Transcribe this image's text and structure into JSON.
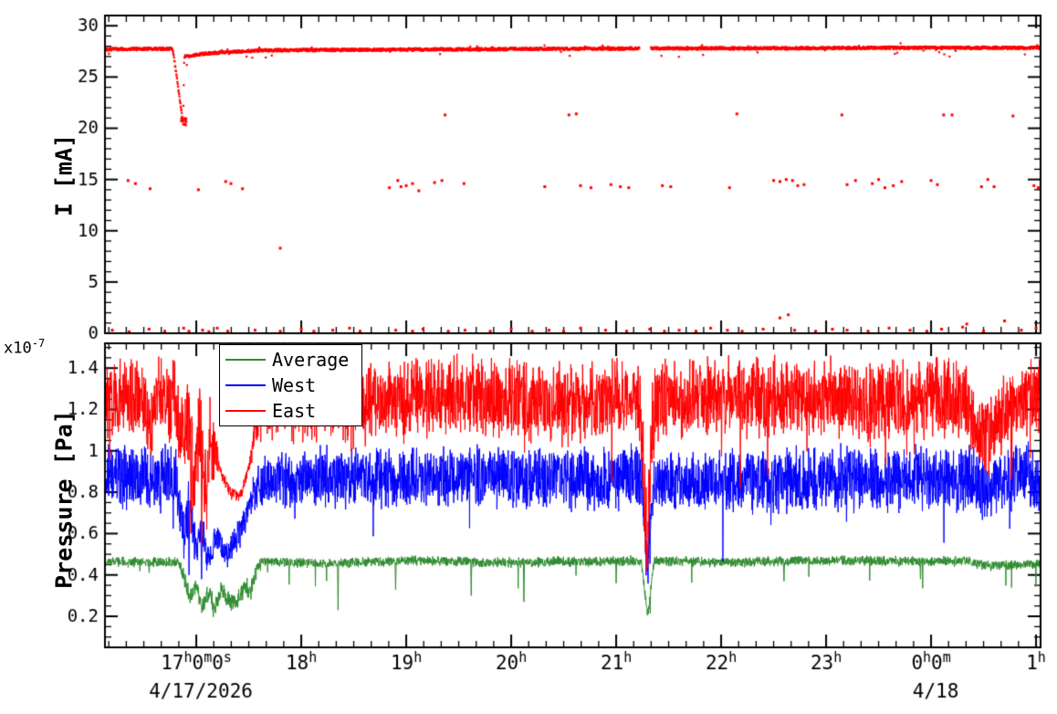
{
  "chart_data": [
    {
      "type": "scatter",
      "title": "",
      "xlabel": "",
      "ylabel": "I [mA]",
      "xlim": [
        16.13,
        25.043
      ],
      "ylim": [
        0,
        31
      ],
      "yticks": [
        0,
        5,
        10,
        15,
        20,
        25,
        30
      ],
      "ytick_labels": [
        "0",
        "5",
        "10",
        "15",
        "20",
        "25",
        "30"
      ],
      "y_minor_step": 1,
      "color": "#ff0000",
      "noise_mA": 0.13,
      "baseline_points": [
        [
          16.13,
          27.7
        ],
        [
          16.5,
          27.75
        ],
        [
          16.76,
          27.75
        ],
        [
          16.78,
          27.5
        ],
        [
          16.875,
          20.4
        ],
        [
          16.885,
          27.0
        ],
        [
          17.1,
          27.3
        ],
        [
          17.6,
          27.6
        ],
        [
          18.5,
          27.65
        ],
        [
          19.5,
          27.7
        ],
        [
          20.5,
          27.75
        ],
        [
          21.5,
          27.8
        ],
        [
          22.5,
          27.8
        ],
        [
          23.5,
          27.85
        ],
        [
          25.043,
          27.85
        ]
      ],
      "gaps": [
        [
          21.22,
          21.33
        ]
      ],
      "dip_cluster": {
        "x0": 16.855,
        "x1": 16.905,
        "y0": 20.3,
        "y1": 21.2,
        "count": 16
      },
      "outliers_15": [
        [
          16.35,
          14.9
        ],
        [
          16.42,
          14.6
        ],
        [
          16.56,
          14.1
        ],
        [
          17.02,
          14.0
        ],
        [
          17.28,
          14.8
        ],
        [
          17.33,
          14.6
        ],
        [
          17.44,
          14.1
        ],
        [
          18.84,
          14.2
        ],
        [
          18.92,
          14.9
        ],
        [
          18.95,
          14.3
        ],
        [
          19.0,
          14.4
        ],
        [
          19.06,
          14.6
        ],
        [
          19.12,
          13.9
        ],
        [
          19.27,
          14.7
        ],
        [
          19.34,
          14.9
        ],
        [
          19.55,
          14.6
        ],
        [
          20.32,
          14.3
        ],
        [
          20.66,
          14.4
        ],
        [
          20.76,
          14.2
        ],
        [
          20.95,
          14.5
        ],
        [
          21.04,
          14.3
        ],
        [
          21.12,
          14.2
        ],
        [
          21.44,
          14.4
        ],
        [
          21.52,
          14.3
        ],
        [
          22.08,
          14.2
        ],
        [
          22.5,
          14.9
        ],
        [
          22.56,
          14.8
        ],
        [
          22.62,
          15.0
        ],
        [
          22.68,
          14.9
        ],
        [
          22.73,
          14.4
        ],
        [
          22.79,
          14.5
        ],
        [
          23.2,
          14.5
        ],
        [
          23.28,
          14.9
        ],
        [
          23.44,
          14.6
        ],
        [
          23.5,
          15.0
        ],
        [
          23.56,
          14.2
        ],
        [
          23.64,
          14.4
        ],
        [
          23.72,
          14.8
        ],
        [
          24.0,
          14.9
        ],
        [
          24.06,
          14.5
        ],
        [
          24.48,
          14.3
        ],
        [
          24.54,
          15.0
        ],
        [
          24.6,
          14.3
        ],
        [
          24.98,
          14.4
        ],
        [
          25.02,
          14.2
        ]
      ],
      "outliers_21": [
        [
          19.37,
          21.3
        ],
        [
          20.55,
          21.3
        ],
        [
          20.62,
          21.4
        ],
        [
          22.15,
          21.4
        ],
        [
          23.15,
          21.3
        ],
        [
          24.12,
          21.3
        ],
        [
          24.2,
          21.3
        ],
        [
          24.78,
          21.2
        ]
      ],
      "outliers_mid": [
        [
          17.8,
          8.3
        ]
      ],
      "outliers_low": [
        [
          16.2,
          0.3
        ],
        [
          16.36,
          0.15
        ],
        [
          16.55,
          0.4
        ],
        [
          16.7,
          0.2
        ],
        [
          16.88,
          0.5
        ],
        [
          16.93,
          0.2
        ],
        [
          17.06,
          0.3
        ],
        [
          17.12,
          0.15
        ],
        [
          17.2,
          0.5
        ],
        [
          17.3,
          0.2
        ],
        [
          17.56,
          0.3
        ],
        [
          17.8,
          0.2
        ],
        [
          18.0,
          0.4
        ],
        [
          18.12,
          0.2
        ],
        [
          18.3,
          0.3
        ],
        [
          18.46,
          0.5
        ],
        [
          18.56,
          0.2
        ],
        [
          18.9,
          0.3
        ],
        [
          19.06,
          0.2
        ],
        [
          19.16,
          0.4
        ],
        [
          19.4,
          0.2
        ],
        [
          19.56,
          0.3
        ],
        [
          19.8,
          0.2
        ],
        [
          20.0,
          0.4
        ],
        [
          20.2,
          0.2
        ],
        [
          20.36,
          0.3
        ],
        [
          20.5,
          0.2
        ],
        [
          20.66,
          0.5
        ],
        [
          20.9,
          0.3
        ],
        [
          21.1,
          0.2
        ],
        [
          21.32,
          0.4
        ],
        [
          21.46,
          0.2
        ],
        [
          21.6,
          0.3
        ],
        [
          21.76,
          0.2
        ],
        [
          21.9,
          0.5
        ],
        [
          22.06,
          0.3
        ],
        [
          22.2,
          0.2
        ],
        [
          22.4,
          0.4
        ],
        [
          22.56,
          1.5
        ],
        [
          22.64,
          1.8
        ],
        [
          22.7,
          0.3
        ],
        [
          22.9,
          0.2
        ],
        [
          23.06,
          0.4
        ],
        [
          23.2,
          0.3
        ],
        [
          23.4,
          0.2
        ],
        [
          23.6,
          0.5
        ],
        [
          23.8,
          0.3
        ],
        [
          23.96,
          0.2
        ],
        [
          24.1,
          0.4
        ],
        [
          24.3,
          0.6
        ],
        [
          24.34,
          0.9
        ],
        [
          24.5,
          0.2
        ],
        [
          24.7,
          1.2
        ],
        [
          24.86,
          0.3
        ],
        [
          25.0,
          0.5
        ]
      ]
    },
    {
      "type": "line",
      "title": "",
      "xlabel": "",
      "ylabel": "Pressure [Pa]",
      "scale_mantissa": "x10",
      "scale_exp": "-7",
      "xlim": [
        16.13,
        25.043
      ],
      "ylim": [
        0.05,
        1.52
      ],
      "yticks": [
        0.2,
        0.4,
        0.6,
        0.8,
        1,
        1.2,
        1.4
      ],
      "ytick_labels": [
        "0.2",
        "0.4",
        "0.6",
        "0.8",
        "1",
        "1.2",
        "1.4"
      ],
      "y_minor_step": 0.05,
      "legend_position": "top-left",
      "series": [
        {
          "name": "Average",
          "color": "#2e8b2e",
          "deep_prob": 0.004,
          "deep_depth": 0.09,
          "mean_points": [
            [
              16.13,
              0.462
            ],
            [
              16.82,
              0.462
            ],
            [
              16.88,
              0.4
            ],
            [
              16.93,
              0.3
            ],
            [
              17.0,
              0.34
            ],
            [
              17.06,
              0.25
            ],
            [
              17.12,
              0.32
            ],
            [
              17.18,
              0.24
            ],
            [
              17.24,
              0.33
            ],
            [
              17.3,
              0.28
            ],
            [
              17.38,
              0.26
            ],
            [
              17.45,
              0.34
            ],
            [
              17.52,
              0.32
            ],
            [
              17.58,
              0.44
            ],
            [
              17.65,
              0.468
            ],
            [
              18.2,
              0.455
            ],
            [
              19.0,
              0.47
            ],
            [
              20.0,
              0.46
            ],
            [
              21.0,
              0.468
            ],
            [
              21.24,
              0.468
            ],
            [
              21.3,
              0.2
            ],
            [
              21.36,
              0.468
            ],
            [
              22.0,
              0.462
            ],
            [
              23.0,
              0.47
            ],
            [
              24.0,
              0.465
            ],
            [
              24.35,
              0.468
            ],
            [
              24.5,
              0.445
            ],
            [
              25.043,
              0.452
            ]
          ],
          "amp_points": [
            [
              16.13,
              0.024
            ],
            [
              16.84,
              0.024
            ],
            [
              16.9,
              0.05
            ],
            [
              17.55,
              0.05
            ],
            [
              17.65,
              0.024
            ],
            [
              25.043,
              0.024
            ]
          ],
          "spikes": [
            [
              16.55,
              0.41
            ],
            [
              18.35,
              0.23
            ],
            [
              18.9,
              0.33
            ],
            [
              19.62,
              0.3
            ],
            [
              20.12,
              0.27
            ],
            [
              21.0,
              0.36
            ],
            [
              22.6,
              0.37
            ],
            [
              23.9,
              0.38
            ]
          ]
        },
        {
          "name": "West",
          "color": "#0000ff",
          "deep_prob": 0.006,
          "deep_depth": 0.2,
          "mean_points": [
            [
              16.13,
              0.87
            ],
            [
              16.8,
              0.87
            ],
            [
              16.88,
              0.62
            ],
            [
              16.94,
              0.75
            ],
            [
              17.0,
              0.5
            ],
            [
              17.06,
              0.62
            ],
            [
              17.12,
              0.46
            ],
            [
              17.2,
              0.58
            ],
            [
              17.28,
              0.5
            ],
            [
              17.36,
              0.55
            ],
            [
              17.45,
              0.65
            ],
            [
              17.52,
              0.75
            ],
            [
              17.62,
              0.85
            ],
            [
              17.72,
              0.87
            ],
            [
              21.24,
              0.87
            ],
            [
              21.3,
              0.46
            ],
            [
              21.36,
              0.85
            ],
            [
              24.35,
              0.87
            ],
            [
              24.55,
              0.82
            ],
            [
              24.75,
              0.87
            ],
            [
              25.043,
              0.87
            ]
          ],
          "amp_points": [
            [
              16.13,
              0.16
            ],
            [
              16.84,
              0.16
            ],
            [
              16.9,
              0.13
            ],
            [
              17.18,
              0.08
            ],
            [
              17.5,
              0.07
            ],
            [
              17.62,
              0.14
            ],
            [
              25.043,
              0.16
            ]
          ],
          "spikes": [
            [
              16.93,
              0.4
            ],
            [
              17.05,
              0.38
            ],
            [
              21.3,
              0.43
            ]
          ]
        },
        {
          "name": "East",
          "color": "#ff0000",
          "deep_prob": 0.008,
          "deep_depth": 0.28,
          "mean_points": [
            [
              16.13,
              1.25
            ],
            [
              16.5,
              1.25
            ],
            [
              16.57,
              1.1
            ],
            [
              16.62,
              1.25
            ],
            [
              16.8,
              1.25
            ],
            [
              16.88,
              1.05
            ],
            [
              16.93,
              1.2
            ],
            [
              16.98,
              0.85
            ],
            [
              17.03,
              1.15
            ],
            [
              17.08,
              0.8
            ],
            [
              17.13,
              1.05
            ],
            [
              17.18,
              1.0
            ],
            [
              17.25,
              0.88
            ],
            [
              17.32,
              0.8
            ],
            [
              17.42,
              0.78
            ],
            [
              17.5,
              0.92
            ],
            [
              17.58,
              1.15
            ],
            [
              17.68,
              1.25
            ],
            [
              18.5,
              1.22
            ],
            [
              19.5,
              1.27
            ],
            [
              20.5,
              1.23
            ],
            [
              21.22,
              1.25
            ],
            [
              21.3,
              0.55
            ],
            [
              21.34,
              1.12
            ],
            [
              21.42,
              1.25
            ],
            [
              22.5,
              1.26
            ],
            [
              23.5,
              1.24
            ],
            [
              24.3,
              1.25
            ],
            [
              24.42,
              1.12
            ],
            [
              24.55,
              1.05
            ],
            [
              24.72,
              1.2
            ],
            [
              24.85,
              1.25
            ],
            [
              25.043,
              1.25
            ]
          ],
          "amp_points": [
            [
              16.13,
              0.19
            ],
            [
              16.84,
              0.19
            ],
            [
              16.9,
              0.25
            ],
            [
              17.16,
              0.22
            ],
            [
              17.22,
              0.03
            ],
            [
              17.5,
              0.03
            ],
            [
              17.58,
              0.12
            ],
            [
              17.7,
              0.19
            ],
            [
              21.2,
              0.19
            ],
            [
              21.28,
              0.28
            ],
            [
              21.4,
              0.19
            ],
            [
              25.043,
              0.19
            ]
          ],
          "spikes": [
            [
              16.57,
              0.97
            ],
            [
              16.95,
              0.6
            ],
            [
              17.05,
              0.55
            ],
            [
              17.1,
              0.62
            ],
            [
              21.3,
              0.5
            ]
          ]
        }
      ]
    }
  ],
  "x_axis": {
    "minor_per_hour": 6,
    "ticks": [
      {
        "v": 17,
        "label": "17^h0^m0^s"
      },
      {
        "v": 18,
        "label": "18^h"
      },
      {
        "v": 19,
        "label": "19^h"
      },
      {
        "v": 20,
        "label": "20^h"
      },
      {
        "v": 21,
        "label": "21^h"
      },
      {
        "v": 22,
        "label": "22^h"
      },
      {
        "v": 23,
        "label": "23^h"
      },
      {
        "v": 24,
        "label": "0^h0^m"
      },
      {
        "v": 25,
        "label": "1^h"
      }
    ],
    "date_labels": [
      {
        "v": 17,
        "text": "4/17/2026"
      },
      {
        "v": 24,
        "text": "4/18"
      }
    ]
  }
}
